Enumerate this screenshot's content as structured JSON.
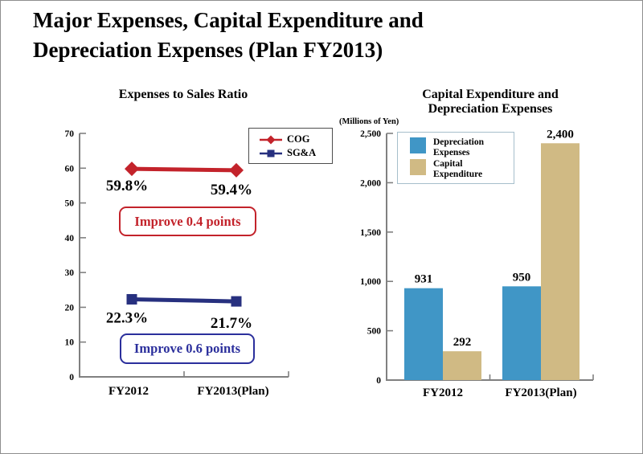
{
  "slide": {
    "title_lines": [
      "Major Expenses, Capital Expenditure and",
      "Depreciation Expenses (Plan FY2013)"
    ]
  },
  "chart_data": [
    {
      "type": "line",
      "title": "Expenses to Sales Ratio",
      "categories": [
        "FY2012",
        "FY2013(Plan)"
      ],
      "series": [
        {
          "name": "COG",
          "values": [
            59.8,
            59.4
          ],
          "point_labels": [
            "59.8%",
            "59.4%"
          ],
          "color": "#c3232b",
          "marker": "diamond"
        },
        {
          "name": "SG&A",
          "values": [
            22.3,
            21.7
          ],
          "point_labels": [
            "22.3%",
            "21.7%"
          ],
          "color": "#27307f",
          "marker": "square"
        }
      ],
      "ylim": [
        0,
        70
      ],
      "ytick_step": 10,
      "ytick_labels": [
        "0",
        "10",
        "20",
        "30",
        "40",
        "50",
        "60",
        "70"
      ],
      "annotations": [
        {
          "text": "Improve 0.4 points",
          "color": "#c3232b"
        },
        {
          "text": "Improve 0.6 points",
          "color": "#2b2f9c"
        }
      ],
      "legend_position": "top-right",
      "grid": false,
      "axis_color": "#808080"
    },
    {
      "type": "bar",
      "title": "Capital Expenditure and Depreciation Expenses",
      "title_lines": [
        "Capital Expenditure and",
        "Depreciation Expenses"
      ],
      "axis_unit": "(Millions of Yen)",
      "categories": [
        "FY2012",
        "FY2013(Plan)"
      ],
      "series": [
        {
          "name": "Depreciation Expenses",
          "values": [
            931,
            950
          ],
          "value_labels": [
            "931",
            "950"
          ],
          "color": "#4096c6"
        },
        {
          "name": "Capital Expenditure",
          "values": [
            292,
            2400
          ],
          "value_labels": [
            "292",
            "2,400"
          ],
          "color": "#d0ba84"
        }
      ],
      "ylim": [
        0,
        2500
      ],
      "ytick_step": 500,
      "ytick_labels": [
        "0",
        "500",
        "1,000",
        "1,500",
        "2,000",
        "2,500"
      ],
      "legend_position": "top-left",
      "grid": false,
      "axis_color": "#808080"
    }
  ]
}
